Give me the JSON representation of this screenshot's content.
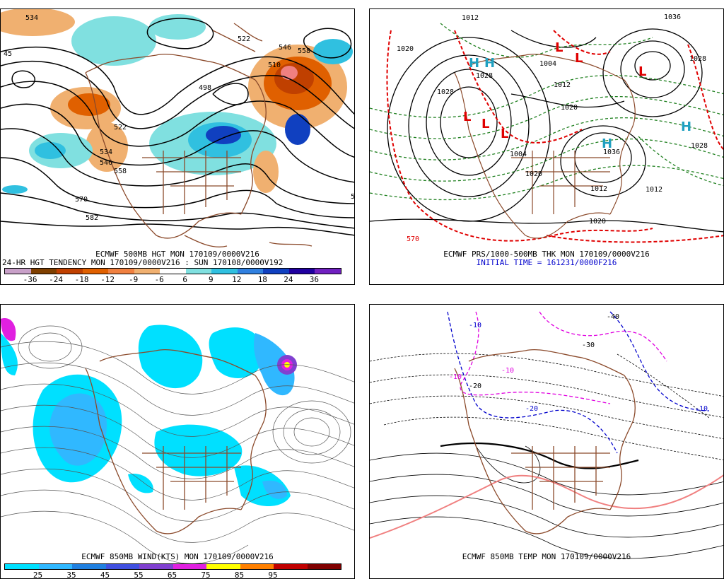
{
  "panels": {
    "p1": {
      "caption1": "ECMWF 500MB HGT MON 170109/0000V216",
      "caption2": "24-HR HGT TENDENCY MON 170109/0000V216 : SUN 170108/0000V192",
      "contour_labels": [
        "534",
        "546",
        "558",
        "510",
        "498",
        "522",
        "534",
        "546",
        "558",
        "570",
        "582",
        "45",
        "5",
        "522"
      ],
      "colorbar_colors": [
        "#c8a0c8",
        "#7f3f00",
        "#c04000",
        "#e06000",
        "#f08040",
        "#f0b070",
        "#ffffff",
        "#80e0e0",
        "#30c0e0",
        "#3080e0",
        "#1040c0",
        "#2000a0",
        "#7020c0"
      ],
      "colorbar_ticks": [
        "-36",
        "-24",
        "-18",
        "-12",
        "-9",
        "-6",
        "6",
        "9",
        "12",
        "18",
        "24",
        "36"
      ]
    },
    "p2": {
      "caption1": "ECMWF PRS/1000-500MB THK MON 170109/0000V216",
      "caption2": "INITIAL TIME = 161231/0000F216",
      "pressure_labels": [
        "1012",
        "1020",
        "1028",
        "1004",
        "1012",
        "1020",
        "1028",
        "1036",
        "1020",
        "1012",
        "1004",
        "1012",
        "1020",
        "1028",
        "1036",
        "1028"
      ],
      "thickness_labels": [
        "570"
      ],
      "centers": [
        "L",
        "L",
        "L",
        "L",
        "L",
        "L",
        "H",
        "H",
        "H",
        "H"
      ]
    },
    "p3": {
      "caption1": "ECMWF 850MB WIND(KTS) MON 170109/0000V216",
      "colorbar_colors": [
        "#00e0ff",
        "#30b8ff",
        "#2080e0",
        "#4050e0",
        "#8040d0",
        "#e020e0",
        "#ffff00",
        "#ff8000",
        "#c00000",
        "#800000"
      ],
      "colorbar_ticks": [
        "25",
        "35",
        "45",
        "55",
        "65",
        "75",
        "85",
        "95"
      ]
    },
    "p4": {
      "caption1": "ECMWF 850MB TEMP MON 170109/0000V216",
      "temp_labels": [
        "-10",
        "-10",
        "-10",
        "-20",
        "-20",
        "-30",
        "-40",
        "-10"
      ]
    }
  },
  "colors": {
    "coast": "#8b4a2b",
    "contour": "#000000",
    "thickness_red": "#e00000",
    "thickness_green": "#208020",
    "cold_blue": "#0000cc",
    "magenta": "#e000e0",
    "warm_pink": "#f08080"
  }
}
